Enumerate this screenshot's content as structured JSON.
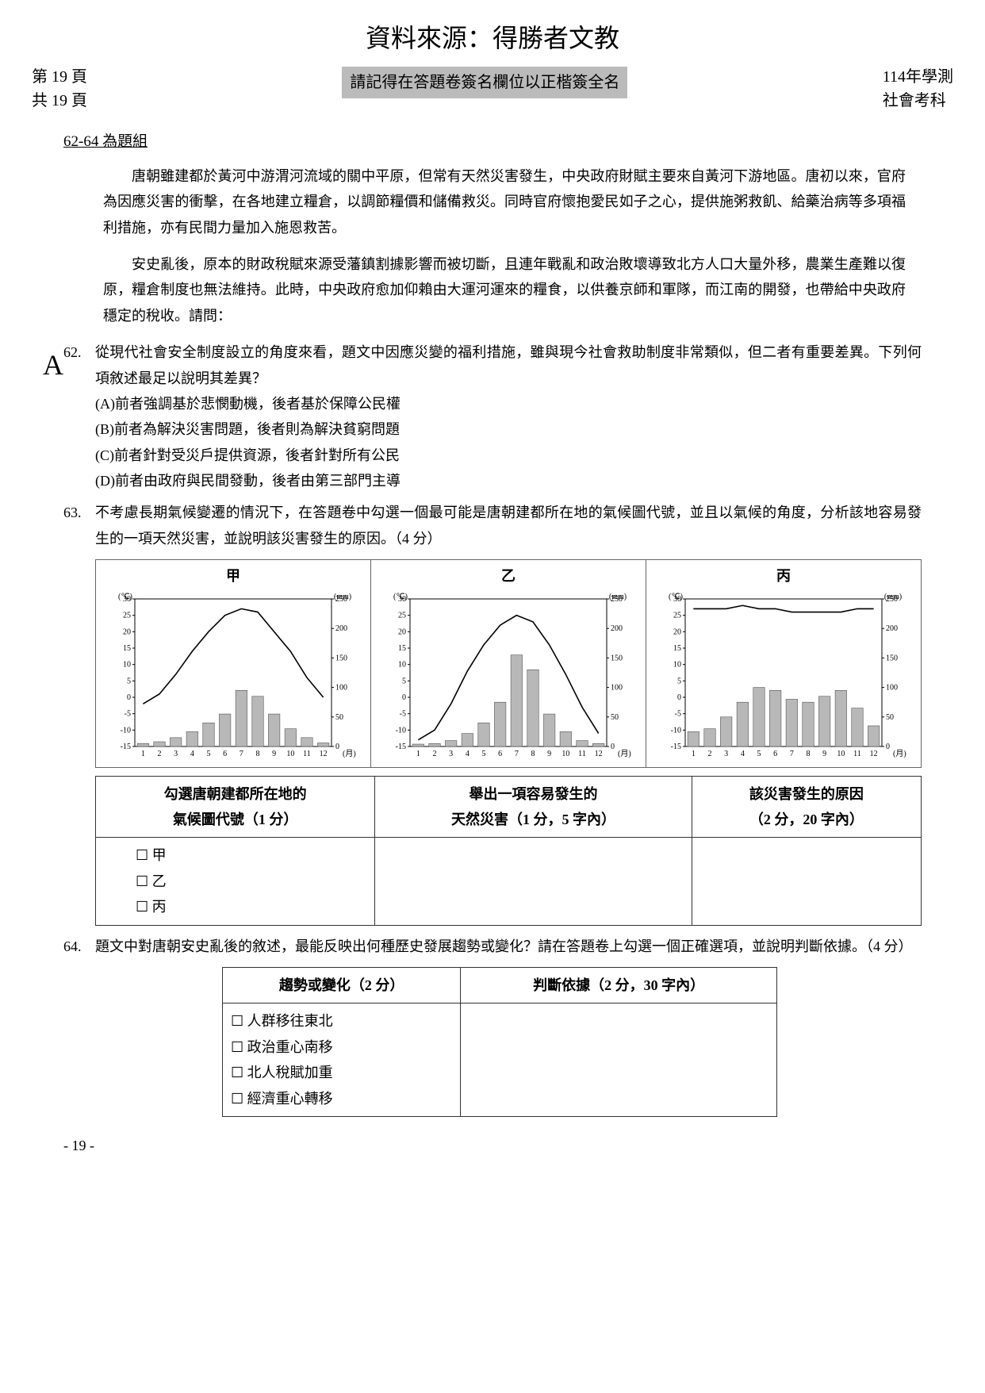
{
  "header": {
    "source_line": "資料來源：得勝者文教",
    "page_left_1": "第 19 頁",
    "page_left_2": "共 19 頁",
    "center_notice": "請記得在答題卷簽名欄位以正楷簽全名",
    "right_1": "114年學測",
    "right_2": "社會考科"
  },
  "group_title": "62-64 為題組",
  "passage_1": "唐朝雖建都於黃河中游渭河流域的關中平原，但常有天然災害發生，中央政府財賦主要來自黃河下游地區。唐初以來，官府為因應災害的衝擊，在各地建立糧倉，以調節糧價和儲備救災。同時官府懷抱愛民如子之心，提供施粥救飢、給藥治病等多項福利措施，亦有民間力量加入施恩救苦。",
  "passage_2": "安史亂後，原本的財政稅賦來源受藩鎮割據影響而被切斷，且連年戰亂和政治敗壞導致北方人口大量外移，農業生產難以復原，糧倉制度也無法維持。此時，中央政府愈加仰賴由大運河運來的糧食，以供養京師和軍隊，而江南的開發，也帶給中央政府穩定的稅收。請問：",
  "margin_annotation": "A",
  "q62": {
    "num": "62.",
    "stem": "從現代社會安全制度設立的角度來看，題文中因應災變的福利措施，雖與現今社會救助制度非常類似，但二者有重要差異。下列何項敘述最足以說明其差異？",
    "A": "(A)前者強調基於悲憫動機，後者基於保障公民權",
    "B": "(B)前者為解決災害問題，後者則為解決貧窮問題",
    "C": "(C)前者針對受災戶提供資源，後者針對所有公民",
    "D": "(D)前者由政府與民間發動，後者由第三部門主導"
  },
  "q63": {
    "num": "63.",
    "stem": "不考慮長期氣候變遷的情況下，在答題卷中勾選一個最可能是唐朝建都所在地的氣候圖代號，並且以氣候的角度，分析該地容易發生的一項天然災害，並說明該災害發生的原因。（4 分）"
  },
  "charts": {
    "labels": [
      "甲",
      "乙",
      "丙"
    ],
    "left_unit": "(℃)",
    "right_unit": "(mm)",
    "x_unit": "(月)",
    "temp_ylim": [
      -15,
      30
    ],
    "temp_ticks": [
      -15,
      -10,
      -5,
      0,
      5,
      10,
      15,
      20,
      25,
      30
    ],
    "rain_ylim": [
      0,
      250
    ],
    "rain_ticks": [
      0,
      50,
      100,
      150,
      200,
      250
    ],
    "months": [
      1,
      2,
      3,
      4,
      5,
      6,
      7,
      8,
      9,
      10,
      11,
      12
    ],
    "jia": {
      "temp": [
        -2,
        1,
        7,
        14,
        20,
        25,
        27,
        26,
        20,
        14,
        6,
        0
      ],
      "rain": [
        5,
        8,
        15,
        25,
        40,
        55,
        95,
        85,
        55,
        30,
        15,
        6
      ]
    },
    "yi": {
      "temp": [
        -13,
        -10,
        -2,
        8,
        16,
        22,
        25,
        23,
        16,
        7,
        -3,
        -11
      ],
      "rain": [
        4,
        5,
        10,
        22,
        40,
        75,
        155,
        130,
        55,
        25,
        10,
        5
      ]
    },
    "bing": {
      "temp": [
        27,
        27,
        27,
        28,
        27,
        27,
        26,
        26,
        26,
        26,
        27,
        27
      ],
      "rain": [
        25,
        30,
        50,
        75,
        100,
        95,
        80,
        75,
        85,
        95,
        65,
        35
      ]
    },
    "colors": {
      "line": "#000000",
      "bar_fill": "#b8b8b8",
      "bar_stroke": "#555555",
      "axis": "#000000",
      "grid": "#cccccc"
    }
  },
  "q63_table": {
    "col1_header": "勾選唐朝建都所在地的\n氣候圖代號（1 分）",
    "col2_header": "舉出一項容易發生的\n天然災害（1 分，5 字內）",
    "col3_header": "該災害發生的原因\n（2 分，20 字內）",
    "opts": [
      "甲",
      "乙",
      "丙"
    ]
  },
  "q64": {
    "num": "64.",
    "stem": "題文中對唐朝安史亂後的敘述，最能反映出何種歷史發展趨勢或變化？請在答題卷上勾選一個正確選項，並說明判斷依據。（4 分）",
    "col1_header": "趨勢或變化（2 分）",
    "col2_header": "判斷依據（2 分，30 字內）",
    "opts": [
      "人群移往東北",
      "政治重心南移",
      "北人稅賦加重",
      "經濟重心轉移"
    ]
  },
  "footer_page": "- 19 -"
}
